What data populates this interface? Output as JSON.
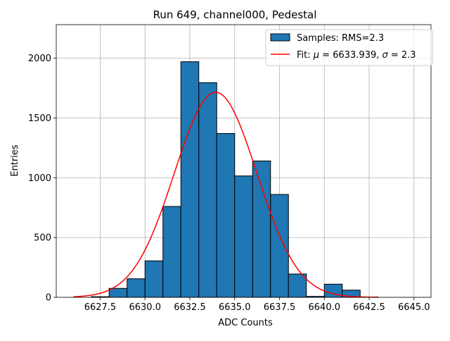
{
  "chart_data": {
    "type": "bar",
    "title": "Run 649, channel000, Pedestal",
    "xlabel": "ADC Counts",
    "ylabel": "Entries",
    "xlim": [
      6625.05,
      6645.95
    ],
    "ylim": [
      0,
      2280
    ],
    "grid": true,
    "legend_position": "top-right",
    "x_ticks": [
      6627.5,
      6630.0,
      6632.5,
      6635.0,
      6637.5,
      6640.0,
      6642.5,
      6645.0
    ],
    "x_tick_labels": [
      "6627.5",
      "6630.0",
      "6632.5",
      "6635.0",
      "6637.5",
      "6640.0",
      "6642.5",
      "6645.0"
    ],
    "y_ticks": [
      0,
      500,
      1000,
      1500,
      2000
    ],
    "y_tick_labels": [
      "0",
      "500",
      "1000",
      "1500",
      "2000"
    ],
    "bins": {
      "edges": [
        6627,
        6628,
        6629,
        6630,
        6631,
        6632,
        6633,
        6634,
        6635,
        6636,
        6637,
        6638,
        6639,
        6640,
        6641,
        6642,
        6643,
        6644,
        6645
      ],
      "values": [
        5,
        75,
        155,
        305,
        760,
        1970,
        1795,
        1370,
        1015,
        1140,
        860,
        195,
        8,
        110,
        60,
        3,
        0,
        0
      ]
    },
    "fit": {
      "mu": 6633.939,
      "sigma": 2.3,
      "amplitude": 1715,
      "x_range": [
        6626,
        6643
      ]
    },
    "series": [
      {
        "name": "Samples: RMS=2.3",
        "kind": "histogram",
        "color": "#1f77b4"
      },
      {
        "name_prefix": "Fit: ",
        "mu_symbol": "μ",
        "mu_text": " = 6633.939, ",
        "sigma_symbol": "σ",
        "sigma_text": " = 2.3",
        "kind": "line",
        "color": "#ff0000"
      }
    ]
  }
}
